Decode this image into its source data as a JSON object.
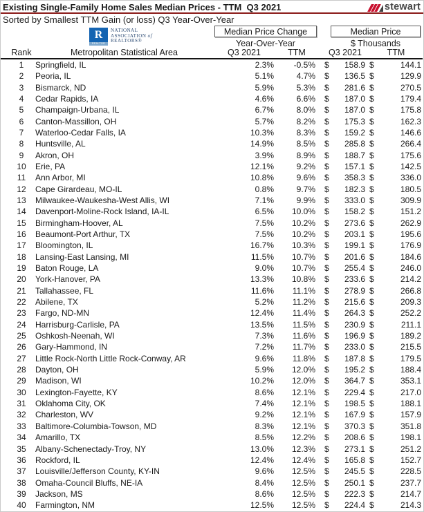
{
  "header": {
    "title": "Existing Single-Family Home Sales Median Prices - TTM  Q3 2021",
    "subtitle": "Sorted by Smallest TTM Gain (or loss) Q3 Year-Over-Year",
    "stewart_wordmark": "stewart"
  },
  "nar_logo": {
    "letter": "R",
    "strip_label": "REALTOR",
    "line1": "NATIONAL",
    "line2_main": "ASSOCIATION",
    "line2_suffix": "of",
    "line3": "REALTORS®"
  },
  "colors": {
    "accent_maroon": "#8b1a18",
    "stewart_red": "#c8102e",
    "nar_blue": "#1464b2"
  },
  "table": {
    "group_headers": {
      "change_title": "Median Price Change",
      "change_sub": "Year-Over-Year",
      "price_title": "Median Price",
      "price_sub": "$ Thousands"
    },
    "columns": {
      "rank": "Rank",
      "metro": "Metropolitan Statistical Area",
      "change_q3": "Q3 2021",
      "change_ttm": "TTM",
      "price_q3": "Q3 2021",
      "price_ttm": "TTM"
    },
    "currency_symbol": "$",
    "rows": [
      {
        "rank": "1",
        "metro": "Springfield, IL",
        "change_q3": "2.3%",
        "change_ttm": "-0.5%",
        "price_q3": "158.9",
        "price_ttm": "144.1"
      },
      {
        "rank": "2",
        "metro": "Peoria, IL",
        "change_q3": "5.1%",
        "change_ttm": "4.7%",
        "price_q3": "136.5",
        "price_ttm": "129.9"
      },
      {
        "rank": "3",
        "metro": "Bismarck, ND",
        "change_q3": "5.9%",
        "change_ttm": "5.3%",
        "price_q3": "281.6",
        "price_ttm": "270.5"
      },
      {
        "rank": "4",
        "metro": "Cedar Rapids, IA",
        "change_q3": "4.6%",
        "change_ttm": "6.6%",
        "price_q3": "187.0",
        "price_ttm": "179.4"
      },
      {
        "rank": "5",
        "metro": "Champaign-Urbana, IL",
        "change_q3": "6.7%",
        "change_ttm": "8.0%",
        "price_q3": "187.0",
        "price_ttm": "175.8"
      },
      {
        "rank": "6",
        "metro": "Canton-Massillon, OH",
        "change_q3": "5.7%",
        "change_ttm": "8.2%",
        "price_q3": "175.3",
        "price_ttm": "162.3"
      },
      {
        "rank": "7",
        "metro": "Waterloo-Cedar Falls, IA",
        "change_q3": "10.3%",
        "change_ttm": "8.3%",
        "price_q3": "159.2",
        "price_ttm": "146.6"
      },
      {
        "rank": "8",
        "metro": "Huntsville, AL",
        "change_q3": "14.9%",
        "change_ttm": "8.5%",
        "price_q3": "285.8",
        "price_ttm": "266.4"
      },
      {
        "rank": "9",
        "metro": "Akron, OH",
        "change_q3": "3.9%",
        "change_ttm": "8.9%",
        "price_q3": "188.7",
        "price_ttm": "175.6"
      },
      {
        "rank": "10",
        "metro": "Erie, PA",
        "change_q3": "12.1%",
        "change_ttm": "9.2%",
        "price_q3": "157.1",
        "price_ttm": "142.5"
      },
      {
        "rank": "11",
        "metro": "Ann Arbor, MI",
        "change_q3": "10.8%",
        "change_ttm": "9.6%",
        "price_q3": "358.3",
        "price_ttm": "336.0"
      },
      {
        "rank": "12",
        "metro": "Cape Girardeau, MO-IL",
        "change_q3": "0.8%",
        "change_ttm": "9.7%",
        "price_q3": "182.3",
        "price_ttm": "180.5"
      },
      {
        "rank": "13",
        "metro": "Milwaukee-Waukesha-West Allis, WI",
        "change_q3": "7.1%",
        "change_ttm": "9.9%",
        "price_q3": "333.0",
        "price_ttm": "309.9"
      },
      {
        "rank": "14",
        "metro": "Davenport-Moline-Rock Island, IA-IL",
        "change_q3": "6.5%",
        "change_ttm": "10.0%",
        "price_q3": "158.2",
        "price_ttm": "151.2"
      },
      {
        "rank": "15",
        "metro": "Birmingham-Hoover, AL",
        "change_q3": "7.5%",
        "change_ttm": "10.2%",
        "price_q3": "273.6",
        "price_ttm": "262.9"
      },
      {
        "rank": "16",
        "metro": "Beaumont-Port Arthur, TX",
        "change_q3": "7.5%",
        "change_ttm": "10.2%",
        "price_q3": "203.1",
        "price_ttm": "195.6"
      },
      {
        "rank": "17",
        "metro": "Bloomington, IL",
        "change_q3": "16.7%",
        "change_ttm": "10.3%",
        "price_q3": "199.1",
        "price_ttm": "176.9"
      },
      {
        "rank": "18",
        "metro": "Lansing-East Lansing, MI",
        "change_q3": "11.5%",
        "change_ttm": "10.7%",
        "price_q3": "201.6",
        "price_ttm": "184.6"
      },
      {
        "rank": "19",
        "metro": "Baton Rouge, LA",
        "change_q3": "9.0%",
        "change_ttm": "10.7%",
        "price_q3": "255.4",
        "price_ttm": "246.0"
      },
      {
        "rank": "20",
        "metro": "York-Hanover, PA",
        "change_q3": "13.3%",
        "change_ttm": "10.8%",
        "price_q3": "233.6",
        "price_ttm": "214.2"
      },
      {
        "rank": "21",
        "metro": "Tallahassee, FL",
        "change_q3": "11.6%",
        "change_ttm": "11.1%",
        "price_q3": "278.9",
        "price_ttm": "266.8"
      },
      {
        "rank": "22",
        "metro": "Abilene, TX",
        "change_q3": "5.2%",
        "change_ttm": "11.2%",
        "price_q3": "215.6",
        "price_ttm": "209.3"
      },
      {
        "rank": "23",
        "metro": "Fargo, ND-MN",
        "change_q3": "12.4%",
        "change_ttm": "11.4%",
        "price_q3": "264.3",
        "price_ttm": "252.2"
      },
      {
        "rank": "24",
        "metro": "Harrisburg-Carlisle, PA",
        "change_q3": "13.5%",
        "change_ttm": "11.5%",
        "price_q3": "230.9",
        "price_ttm": "211.1"
      },
      {
        "rank": "25",
        "metro": "Oshkosh-Neenah, WI",
        "change_q3": "7.3%",
        "change_ttm": "11.6%",
        "price_q3": "196.9",
        "price_ttm": "189.2"
      },
      {
        "rank": "26",
        "metro": "Gary-Hammond, IN",
        "change_q3": "7.2%",
        "change_ttm": "11.7%",
        "price_q3": "233.0",
        "price_ttm": "215.5"
      },
      {
        "rank": "27",
        "metro": "Little Rock-North Little Rock-Conway, AR",
        "change_q3": "9.6%",
        "change_ttm": "11.8%",
        "price_q3": "187.8",
        "price_ttm": "179.5"
      },
      {
        "rank": "28",
        "metro": "Dayton, OH",
        "change_q3": "5.9%",
        "change_ttm": "12.0%",
        "price_q3": "195.2",
        "price_ttm": "188.4"
      },
      {
        "rank": "29",
        "metro": "Madison, WI",
        "change_q3": "10.2%",
        "change_ttm": "12.0%",
        "price_q3": "364.7",
        "price_ttm": "353.1"
      },
      {
        "rank": "30",
        "metro": "Lexington-Fayette, KY",
        "change_q3": "8.6%",
        "change_ttm": "12.1%",
        "price_q3": "229.4",
        "price_ttm": "217.0"
      },
      {
        "rank": "31",
        "metro": "Oklahoma City, OK",
        "change_q3": "7.4%",
        "change_ttm": "12.1%",
        "price_q3": "198.5",
        "price_ttm": "188.1"
      },
      {
        "rank": "32",
        "metro": "Charleston, WV",
        "change_q3": "9.2%",
        "change_ttm": "12.1%",
        "price_q3": "167.9",
        "price_ttm": "157.9"
      },
      {
        "rank": "33",
        "metro": "Baltimore-Columbia-Towson, MD",
        "change_q3": "8.3%",
        "change_ttm": "12.1%",
        "price_q3": "370.3",
        "price_ttm": "351.8"
      },
      {
        "rank": "34",
        "metro": "Amarillo, TX",
        "change_q3": "8.5%",
        "change_ttm": "12.2%",
        "price_q3": "208.6",
        "price_ttm": "198.1"
      },
      {
        "rank": "35",
        "metro": "Albany-Schenectady-Troy, NY",
        "change_q3": "13.0%",
        "change_ttm": "12.3%",
        "price_q3": "273.1",
        "price_ttm": "251.2"
      },
      {
        "rank": "36",
        "metro": "Rockford, IL",
        "change_q3": "12.4%",
        "change_ttm": "12.4%",
        "price_q3": "165.8",
        "price_ttm": "152.7"
      },
      {
        "rank": "37",
        "metro": "Louisville/Jefferson County, KY-IN",
        "change_q3": "9.6%",
        "change_ttm": "12.5%",
        "price_q3": "245.5",
        "price_ttm": "228.5"
      },
      {
        "rank": "38",
        "metro": "Omaha-Council Bluffs, NE-IA",
        "change_q3": "8.4%",
        "change_ttm": "12.5%",
        "price_q3": "250.1",
        "price_ttm": "237.7"
      },
      {
        "rank": "39",
        "metro": "Jackson, MS",
        "change_q3": "8.6%",
        "change_ttm": "12.5%",
        "price_q3": "222.3",
        "price_ttm": "214.7"
      },
      {
        "rank": "40",
        "metro": "Farmington, NM",
        "change_q3": "12.5%",
        "change_ttm": "12.5%",
        "price_q3": "224.4",
        "price_ttm": "214.3"
      }
    ]
  }
}
